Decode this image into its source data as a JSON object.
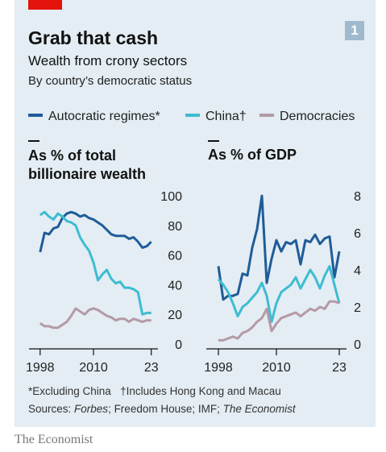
{
  "title": "Grab that cash",
  "subtitle": "Wealth from crony sectors",
  "subtitle2": "By country’s democratic status",
  "badge": "1",
  "footnote": "*Excluding China   †Includes Hong Kong and Macau",
  "source": [
    "Sources: ",
    "Forbes",
    "; Freedom House; IMF; ",
    "The Economist"
  ],
  "brand": "The Economist",
  "chart_data": [
    {
      "type": "line",
      "title": "As % of total billionaire wealth",
      "x": [
        1998,
        1999,
        2000,
        2001,
        2002,
        2003,
        2004,
        2005,
        2006,
        2007,
        2008,
        2009,
        2010,
        2011,
        2012,
        2013,
        2014,
        2015,
        2016,
        2017,
        2018,
        2019,
        2020,
        2021,
        2022,
        2023
      ],
      "xlim": [
        1995.5,
        2024.5
      ],
      "xticks": [
        1998,
        2010,
        {
          "value": 2023,
          "label": "23"
        }
      ],
      "ylim": [
        0,
        100
      ],
      "yticks": [
        0,
        20,
        40,
        60,
        80,
        100
      ],
      "grid": false,
      "series": [
        {
          "name": "Autocratic regimes*",
          "color": "#1f5c99",
          "values": [
            62,
            75,
            74,
            78,
            79,
            85,
            88,
            89,
            88,
            86,
            87,
            85,
            84,
            82,
            80,
            77,
            74,
            73,
            73,
            73,
            71,
            72,
            69,
            65,
            66,
            69
          ]
        },
        {
          "name": "China†",
          "color": "#3ebcd2",
          "values": [
            87,
            89,
            86,
            84,
            88,
            86,
            83,
            82,
            80,
            72,
            67,
            63,
            55,
            43,
            47,
            50,
            44,
            41,
            42,
            38,
            38,
            37,
            35,
            20,
            21,
            21
          ]
        },
        {
          "name": "Democracies",
          "color": "#b49aa6",
          "values": [
            14,
            12,
            12,
            11,
            11,
            13,
            15,
            19,
            24,
            22,
            20,
            23,
            24,
            23,
            21,
            19,
            18,
            16,
            17,
            17,
            15,
            17,
            16,
            15,
            16,
            16
          ]
        }
      ]
    },
    {
      "type": "line",
      "title": "As % of GDP",
      "x": [
        1998,
        1999,
        2000,
        2001,
        2002,
        2003,
        2004,
        2005,
        2006,
        2007,
        2008,
        2009,
        2010,
        2011,
        2012,
        2013,
        2014,
        2015,
        2016,
        2017,
        2018,
        2019,
        2020,
        2021,
        2022,
        2023
      ],
      "xlim": [
        1995.5,
        2024.5
      ],
      "xticks": [
        1998,
        2010,
        {
          "value": 2023,
          "label": "23"
        }
      ],
      "ylim": [
        0,
        8
      ],
      "yticks": [
        0,
        2,
        4,
        6,
        8
      ],
      "grid": false,
      "series": [
        {
          "color": "#1f5c99",
          "values": [
            4.2,
            2.4,
            2.6,
            2.6,
            2.7,
            3.8,
            3.7,
            5.2,
            6.2,
            8.0,
            3.3,
            4.6,
            5.6,
            5.0,
            5.5,
            5.4,
            5.6,
            4.3,
            5.6,
            5.5,
            5.9,
            5.4,
            5.7,
            5.8,
            3.6,
            5.0
          ]
        },
        {
          "color": "#3ebcd2",
          "values": [
            3.5,
            3.2,
            2.8,
            2.2,
            1.5,
            2.0,
            2.2,
            2.5,
            2.8,
            3.3,
            2.6,
            1.2,
            2.2,
            2.8,
            3.0,
            3.2,
            3.6,
            3.0,
            3.5,
            4.0,
            3.6,
            3.0,
            3.7,
            4.2,
            3.2,
            2.2
          ]
        },
        {
          "color": "#b49aa6",
          "values": [
            0.2,
            0.2,
            0.3,
            0.4,
            0.3,
            0.6,
            0.7,
            0.9,
            1.2,
            1.4,
            1.9,
            0.7,
            1.1,
            1.4,
            1.5,
            1.6,
            1.7,
            1.5,
            1.7,
            1.9,
            1.8,
            2.0,
            1.9,
            2.3,
            2.3,
            2.2
          ]
        }
      ]
    }
  ]
}
